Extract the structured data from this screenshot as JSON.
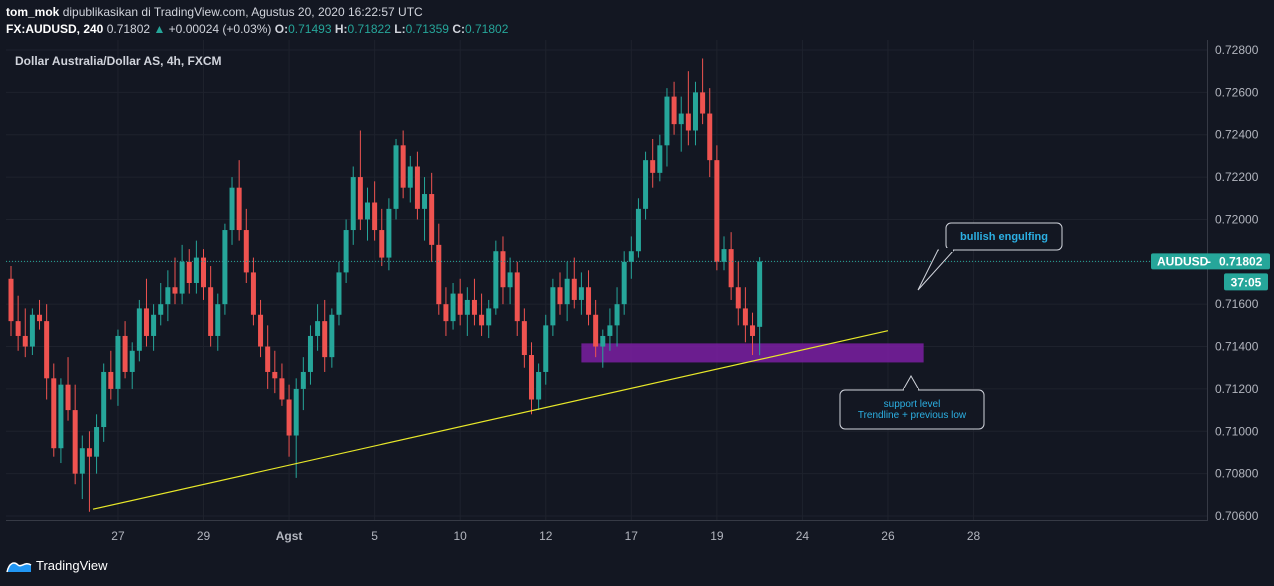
{
  "header": {
    "author": "tom_mok",
    "published": "dipublikasikan di TradingView.com, Agustus 20, 2020 16:22:57 UTC",
    "symbol": "FX:AUDUSD, 240",
    "last": "0.71802",
    "change_arrow": "▲",
    "change": "+0.00024 (+0.03%)",
    "o_label": "O:",
    "o": "0.71493",
    "h_label": "H:",
    "h": "0.71822",
    "l_label": "L:",
    "l": "0.71359",
    "c_label": "C:",
    "c": "0.71802"
  },
  "chart_data": {
    "type": "candlestick",
    "title": "Dollar Australia/Dollar AS, 4h, FXCM",
    "ylim": [
      0.706,
      0.7285
    ],
    "y_ticks": [
      "0.72800",
      "0.72600",
      "0.72400",
      "0.72200",
      "0.72000",
      "0.71800",
      "0.71600",
      "0.71400",
      "0.71200",
      "0.71000",
      "0.70800",
      "0.70600"
    ],
    "x_ticks": [
      {
        "label": "27",
        "bar": 15
      },
      {
        "label": "29",
        "bar": 27
      },
      {
        "label": "Agst",
        "bar": 39
      },
      {
        "label": "5",
        "bar": 51
      },
      {
        "label": "10",
        "bar": 63
      },
      {
        "label": "12",
        "bar": 75
      },
      {
        "label": "17",
        "bar": 87
      },
      {
        "label": "19",
        "bar": 99
      },
      {
        "label": "24",
        "bar": 111
      },
      {
        "label": "26",
        "bar": 123
      },
      {
        "label": "28",
        "bar": 135
      }
    ],
    "current_price_label": "AUDUSD",
    "current_price": "0.71802",
    "current_value": 0.71802,
    "countdown": "37:05",
    "support_zone": {
      "from_bar": 80,
      "to_bar": 128,
      "low": 0.71325,
      "high": 0.71415
    },
    "trendline": {
      "from_bar": 11.5,
      "from_price": 0.70632,
      "to_bar": 123,
      "to_price": 0.71475
    },
    "annotations": [
      {
        "text": "bullish engulfing"
      },
      {
        "lines": [
          "support level",
          "Trendline + previous low"
        ]
      }
    ],
    "candles": [
      [
        0.7172,
        0.7178,
        0.7145,
        0.7152
      ],
      [
        0.7152,
        0.7164,
        0.7138,
        0.7145
      ],
      [
        0.7145,
        0.7158,
        0.7135,
        0.714
      ],
      [
        0.714,
        0.7158,
        0.7136,
        0.7155
      ],
      [
        0.7155,
        0.7162,
        0.7148,
        0.7152
      ],
      [
        0.7152,
        0.716,
        0.7115,
        0.7125
      ],
      [
        0.7125,
        0.7132,
        0.7088,
        0.7092
      ],
      [
        0.7092,
        0.7125,
        0.7085,
        0.7122
      ],
      [
        0.7122,
        0.7135,
        0.7105,
        0.711
      ],
      [
        0.711,
        0.7122,
        0.7075,
        0.708
      ],
      [
        0.708,
        0.7098,
        0.7068,
        0.7092
      ],
      [
        0.7092,
        0.71,
        0.7062,
        0.7088
      ],
      [
        0.7088,
        0.7108,
        0.708,
        0.7102
      ],
      [
        0.7102,
        0.7132,
        0.7095,
        0.7128
      ],
      [
        0.7128,
        0.7138,
        0.7115,
        0.712
      ],
      [
        0.712,
        0.7148,
        0.7112,
        0.7145
      ],
      [
        0.7145,
        0.7152,
        0.7125,
        0.7128
      ],
      [
        0.7128,
        0.7142,
        0.712,
        0.7138
      ],
      [
        0.7138,
        0.7162,
        0.7133,
        0.7158
      ],
      [
        0.7158,
        0.7172,
        0.714,
        0.7145
      ],
      [
        0.7145,
        0.716,
        0.7138,
        0.7155
      ],
      [
        0.7155,
        0.717,
        0.715,
        0.716
      ],
      [
        0.716,
        0.7176,
        0.7152,
        0.7168
      ],
      [
        0.7168,
        0.7182,
        0.716,
        0.7165
      ],
      [
        0.7165,
        0.7188,
        0.716,
        0.718
      ],
      [
        0.718,
        0.7186,
        0.7165,
        0.717
      ],
      [
        0.717,
        0.719,
        0.7165,
        0.7182
      ],
      [
        0.7182,
        0.7186,
        0.7162,
        0.7168
      ],
      [
        0.7168,
        0.7178,
        0.714,
        0.7145
      ],
      [
        0.7145,
        0.7165,
        0.7138,
        0.716
      ],
      [
        0.716,
        0.7198,
        0.7155,
        0.7195
      ],
      [
        0.7195,
        0.722,
        0.7188,
        0.7215
      ],
      [
        0.7215,
        0.7228,
        0.719,
        0.7195
      ],
      [
        0.7195,
        0.7205,
        0.717,
        0.7175
      ],
      [
        0.7175,
        0.7182,
        0.715,
        0.7155
      ],
      [
        0.7155,
        0.7162,
        0.7135,
        0.714
      ],
      [
        0.714,
        0.715,
        0.712,
        0.7128
      ],
      [
        0.7128,
        0.7138,
        0.7118,
        0.7125
      ],
      [
        0.7125,
        0.7132,
        0.7112,
        0.7115
      ],
      [
        0.7115,
        0.7122,
        0.7088,
        0.7098
      ],
      [
        0.7098,
        0.7125,
        0.7078,
        0.712
      ],
      [
        0.712,
        0.7135,
        0.711,
        0.7128
      ],
      [
        0.7128,
        0.715,
        0.7122,
        0.7145
      ],
      [
        0.7145,
        0.716,
        0.7138,
        0.7152
      ],
      [
        0.7152,
        0.7162,
        0.7128,
        0.7135
      ],
      [
        0.7135,
        0.7158,
        0.713,
        0.7155
      ],
      [
        0.7155,
        0.718,
        0.715,
        0.7175
      ],
      [
        0.7175,
        0.72,
        0.717,
        0.7195
      ],
      [
        0.7195,
        0.7225,
        0.7188,
        0.722
      ],
      [
        0.722,
        0.7242,
        0.7195,
        0.72
      ],
      [
        0.72,
        0.7215,
        0.719,
        0.7208
      ],
      [
        0.7208,
        0.7218,
        0.719,
        0.7195
      ],
      [
        0.7195,
        0.7205,
        0.7178,
        0.7182
      ],
      [
        0.7182,
        0.721,
        0.7176,
        0.7205
      ],
      [
        0.7205,
        0.7238,
        0.72,
        0.7235
      ],
      [
        0.7235,
        0.7242,
        0.721,
        0.7215
      ],
      [
        0.7215,
        0.723,
        0.7208,
        0.7225
      ],
      [
        0.7225,
        0.7232,
        0.72,
        0.7205
      ],
      [
        0.7205,
        0.722,
        0.719,
        0.7212
      ],
      [
        0.7212,
        0.7222,
        0.718,
        0.7188
      ],
      [
        0.7188,
        0.7198,
        0.7155,
        0.716
      ],
      [
        0.716,
        0.7168,
        0.7145,
        0.7152
      ],
      [
        0.7152,
        0.717,
        0.7148,
        0.7165
      ],
      [
        0.7165,
        0.7172,
        0.715,
        0.7155
      ],
      [
        0.7155,
        0.7168,
        0.7145,
        0.7162
      ],
      [
        0.7162,
        0.7172,
        0.715,
        0.7155
      ],
      [
        0.7155,
        0.7165,
        0.7145,
        0.715
      ],
      [
        0.715,
        0.7162,
        0.7144,
        0.7158
      ],
      [
        0.7158,
        0.719,
        0.7155,
        0.7185
      ],
      [
        0.7185,
        0.7192,
        0.716,
        0.7168
      ],
      [
        0.7168,
        0.7182,
        0.716,
        0.7175
      ],
      [
        0.7175,
        0.718,
        0.7145,
        0.7152
      ],
      [
        0.7152,
        0.7158,
        0.713,
        0.7136
      ],
      [
        0.7136,
        0.7142,
        0.7108,
        0.7115
      ],
      [
        0.7115,
        0.7132,
        0.711,
        0.7128
      ],
      [
        0.7128,
        0.7155,
        0.7122,
        0.715
      ],
      [
        0.715,
        0.7172,
        0.7145,
        0.7168
      ],
      [
        0.7168,
        0.7175,
        0.7155,
        0.716
      ],
      [
        0.716,
        0.718,
        0.7152,
        0.7172
      ],
      [
        0.7172,
        0.7182,
        0.7158,
        0.7162
      ],
      [
        0.7162,
        0.7175,
        0.7155,
        0.7168
      ],
      [
        0.7168,
        0.7176,
        0.715,
        0.7155
      ],
      [
        0.7155,
        0.7162,
        0.7135,
        0.714
      ],
      [
        0.714,
        0.7148,
        0.713,
        0.7145
      ],
      [
        0.7145,
        0.7158,
        0.7138,
        0.715
      ],
      [
        0.715,
        0.7168,
        0.714,
        0.716
      ],
      [
        0.716,
        0.7185,
        0.7155,
        0.718
      ],
      [
        0.718,
        0.7192,
        0.7172,
        0.7185
      ],
      [
        0.7185,
        0.721,
        0.7182,
        0.7205
      ],
      [
        0.7205,
        0.7232,
        0.72,
        0.7228
      ],
      [
        0.7228,
        0.7238,
        0.7215,
        0.7222
      ],
      [
        0.7222,
        0.724,
        0.7218,
        0.7235
      ],
      [
        0.7235,
        0.7262,
        0.7225,
        0.7258
      ],
      [
        0.7258,
        0.7265,
        0.724,
        0.7245
      ],
      [
        0.7245,
        0.7258,
        0.7232,
        0.725
      ],
      [
        0.725,
        0.727,
        0.7235,
        0.7242
      ],
      [
        0.7242,
        0.7265,
        0.7235,
        0.726
      ],
      [
        0.726,
        0.7276,
        0.7245,
        0.725
      ],
      [
        0.725,
        0.7262,
        0.722,
        0.7228
      ],
      [
        0.7228,
        0.7235,
        0.7176,
        0.718
      ],
      [
        0.718,
        0.7192,
        0.7176,
        0.7186
      ],
      [
        0.7186,
        0.7194,
        0.7162,
        0.7168
      ],
      [
        0.7168,
        0.718,
        0.715,
        0.7158
      ],
      [
        0.7158,
        0.7168,
        0.7142,
        0.715
      ],
      [
        0.715,
        0.7156,
        0.7136,
        0.7145
      ],
      [
        0.71493,
        0.71822,
        0.71359,
        0.71802
      ]
    ]
  }
}
